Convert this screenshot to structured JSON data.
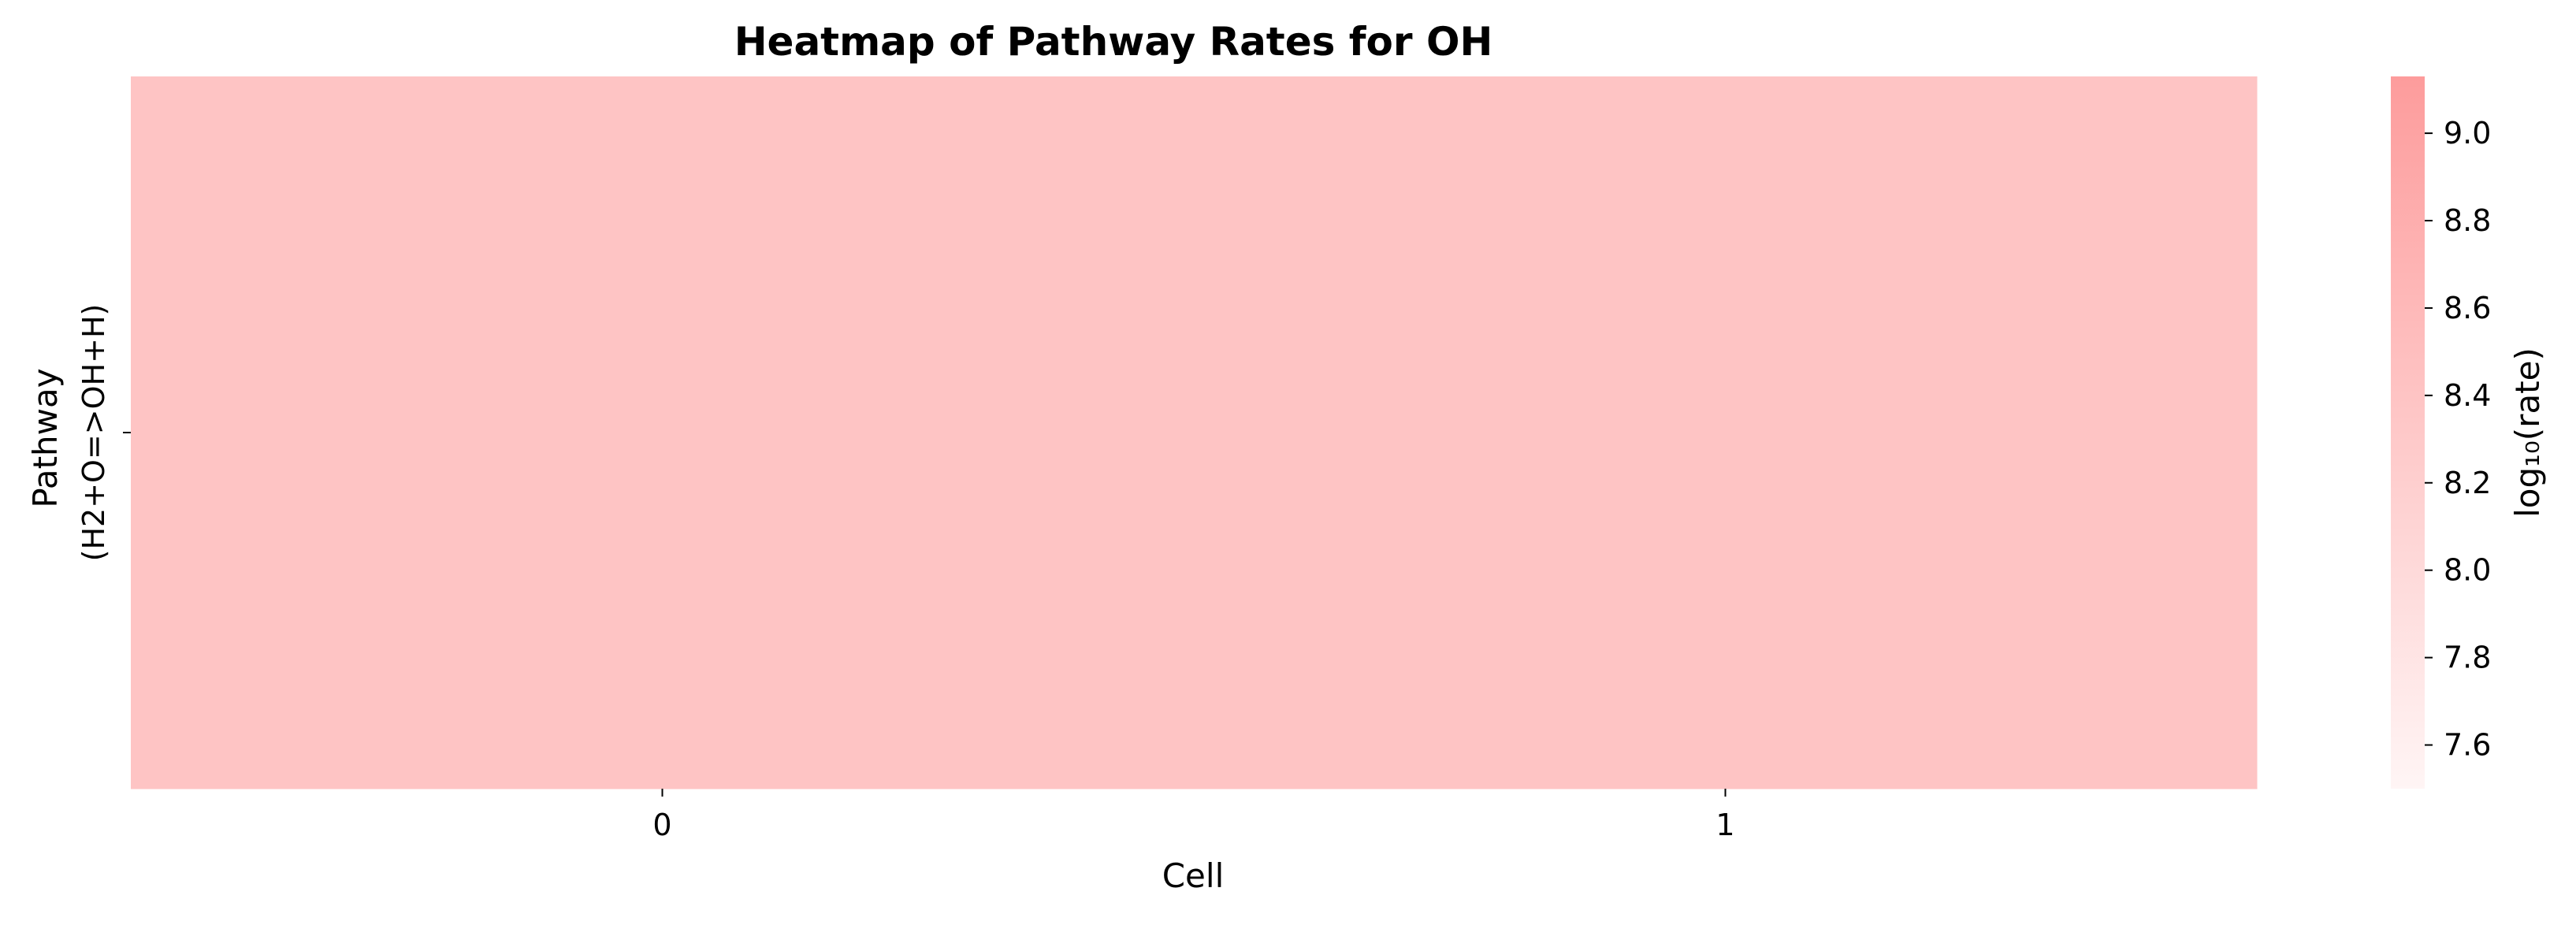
{
  "chart_data": {
    "type": "heatmap",
    "title": "Heatmap of Pathway Rates for OH",
    "xlabel": "Cell",
    "ylabel": "Pathway",
    "x_categories": [
      "0",
      "1"
    ],
    "y_categories": [
      "(H2+O=>OH+H)"
    ],
    "values": [
      [
        8.4,
        8.4
      ]
    ],
    "colorbar": {
      "label": "log₁₀(rate)",
      "range": [
        7.5,
        9.13
      ],
      "ticks": [
        "7.6",
        "7.8",
        "8.0",
        "8.2",
        "8.4",
        "8.6",
        "8.8",
        "9.0"
      ],
      "color_low": "#fff5f5",
      "color_high": "#fd9c9c"
    }
  }
}
